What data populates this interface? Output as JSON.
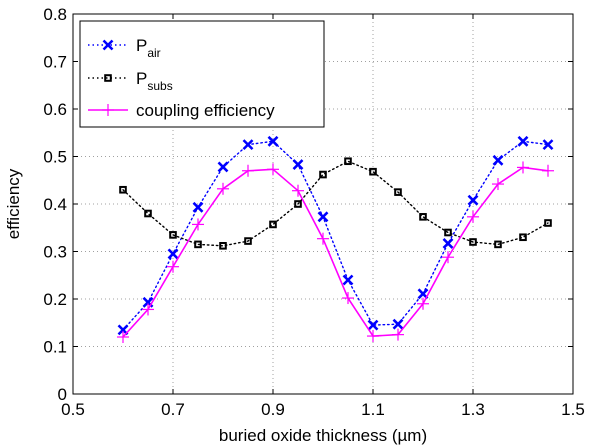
{
  "chart_data": {
    "type": "line",
    "xlabel": "buried oxide thickness (µm)",
    "ylabel": "efficiency",
    "xlim": [
      0.5,
      1.5
    ],
    "ylim": [
      0,
      0.8
    ],
    "xticks": [
      0.5,
      0.7,
      0.9,
      1.1,
      1.3,
      1.5
    ],
    "xtick_labels": [
      "0.5",
      "0.7",
      "0.9",
      "1.1",
      "1.3",
      "1.5"
    ],
    "yticks": [
      0,
      0.1,
      0.2,
      0.3,
      0.4,
      0.5,
      0.6,
      0.7,
      0.8
    ],
    "ytick_labels": [
      "0",
      "0.1",
      "0.2",
      "0.3",
      "0.4",
      "0.5",
      "0.6",
      "0.7",
      "0.8"
    ],
    "grid": true,
    "legend_position": "top-left",
    "x": [
      0.6,
      0.65,
      0.7,
      0.75,
      0.8,
      0.85,
      0.9,
      0.95,
      1.0,
      1.05,
      1.1,
      1.15,
      1.2,
      1.25,
      1.3,
      1.35,
      1.4,
      1.45
    ],
    "series": [
      {
        "name": "P",
        "name_sub": "air",
        "color": "#0000ff",
        "line_style": "dotted",
        "marker": "x",
        "values": [
          0.135,
          0.193,
          0.295,
          0.393,
          0.478,
          0.525,
          0.532,
          0.483,
          0.373,
          0.24,
          0.145,
          0.147,
          0.211,
          0.317,
          0.408,
          0.492,
          0.532,
          0.525
        ]
      },
      {
        "name": "P",
        "name_sub": "subs",
        "color": "#000000",
        "line_style": "dotted",
        "marker": "square",
        "values": [
          0.43,
          0.38,
          0.335,
          0.315,
          0.312,
          0.322,
          0.357,
          0.4,
          0.462,
          0.49,
          0.468,
          0.425,
          0.373,
          0.34,
          0.32,
          0.315,
          0.33,
          0.36
        ]
      },
      {
        "name": "coupling efficiency",
        "color": "#ff00ff",
        "line_style": "solid",
        "marker": "plus",
        "values": [
          0.12,
          0.178,
          0.268,
          0.357,
          0.432,
          0.47,
          0.473,
          0.428,
          0.327,
          0.202,
          0.122,
          0.125,
          0.19,
          0.288,
          0.373,
          0.442,
          0.477,
          0.47
        ]
      }
    ]
  }
}
